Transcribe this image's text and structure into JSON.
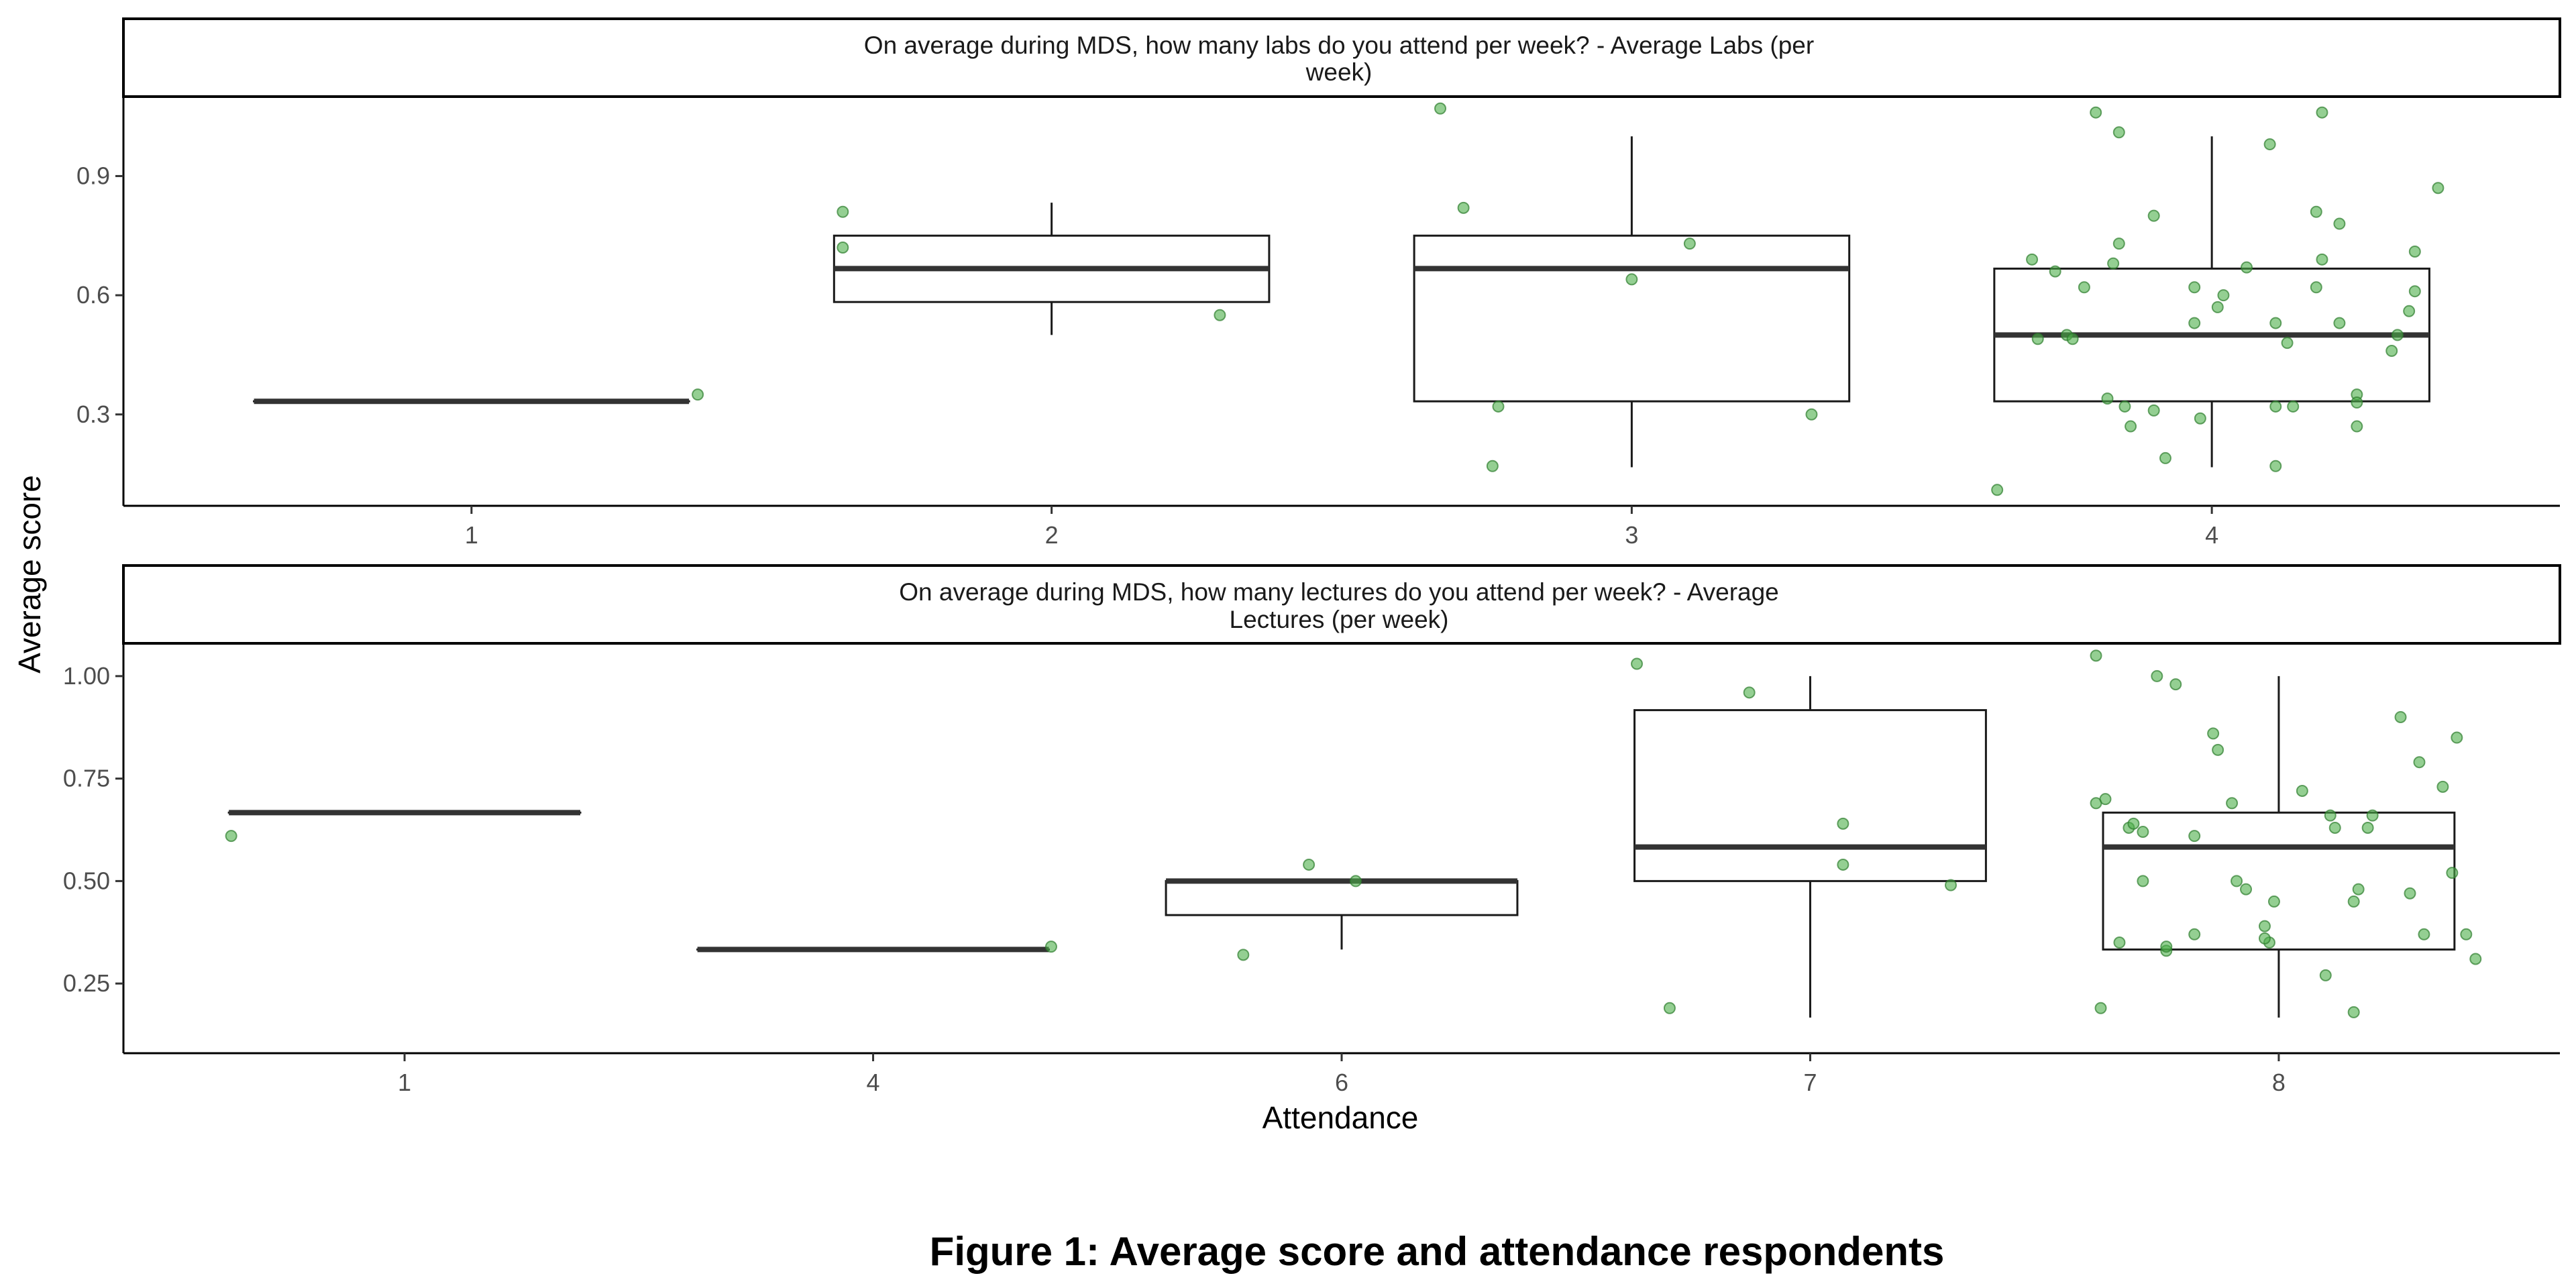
{
  "figure": {
    "caption": "Figure 1: Average score and attendance respondents",
    "ylabel": "Average score",
    "xlabel": "Attendance"
  },
  "colors": {
    "box_stroke": "#1a1a1a",
    "median": "#333333",
    "point_fill": "#4daf4a",
    "point_stroke": "#2e7d2e",
    "axis": "#000000",
    "tick_text": "#4d4d4d"
  },
  "chart_data": [
    {
      "type": "boxplot",
      "panel_title_lines": [
        "On average during MDS, how many labs do you attend per week? - Average Labs (per",
        "week)"
      ],
      "categories": [
        "1",
        "2",
        "3",
        "4"
      ],
      "ylim": [
        0.07,
        1.1
      ],
      "yticks": [
        0.3,
        0.6,
        0.9
      ],
      "ytick_labels": [
        "0.3",
        "0.6",
        "0.9"
      ],
      "boxes": [
        {
          "category": "1",
          "lower": 0.333,
          "q1": 0.333,
          "median": 0.333,
          "q3": 0.333,
          "upper": 0.333
        },
        {
          "category": "2",
          "lower": 0.5,
          "q1": 0.583,
          "median": 0.667,
          "q3": 0.75,
          "upper": 0.833
        },
        {
          "category": "3",
          "lower": 0.167,
          "q1": 0.333,
          "median": 0.667,
          "q3": 0.75,
          "upper": 1.0
        },
        {
          "category": "4",
          "lower": 0.167,
          "q1": 0.333,
          "median": 0.5,
          "q3": 0.667,
          "upper": 1.0
        }
      ],
      "points": [
        {
          "x": 1.39,
          "y": 0.35
        },
        {
          "x": 1.64,
          "y": 0.81
        },
        {
          "x": 1.64,
          "y": 0.72
        },
        {
          "x": 2.29,
          "y": 0.55
        },
        {
          "x": 2.67,
          "y": 1.07
        },
        {
          "x": 2.71,
          "y": 0.82
        },
        {
          "x": 2.77,
          "y": 0.32
        },
        {
          "x": 2.76,
          "y": 0.17
        },
        {
          "x": 3.0,
          "y": 0.64
        },
        {
          "x": 3.1,
          "y": 0.73
        },
        {
          "x": 3.31,
          "y": 0.3
        },
        {
          "x": 3.63,
          "y": 0.11
        },
        {
          "x": 3.69,
          "y": 0.69
        },
        {
          "x": 3.7,
          "y": 0.49
        },
        {
          "x": 3.73,
          "y": 0.66
        },
        {
          "x": 3.75,
          "y": 0.5
        },
        {
          "x": 3.76,
          "y": 0.49
        },
        {
          "x": 3.78,
          "y": 0.62
        },
        {
          "x": 3.8,
          "y": 1.06
        },
        {
          "x": 3.82,
          "y": 0.34
        },
        {
          "x": 3.83,
          "y": 0.68
        },
        {
          "x": 3.84,
          "y": 1.01
        },
        {
          "x": 3.84,
          "y": 0.73
        },
        {
          "x": 3.85,
          "y": 0.32
        },
        {
          "x": 3.86,
          "y": 0.27
        },
        {
          "x": 3.9,
          "y": 0.8
        },
        {
          "x": 3.92,
          "y": 0.19
        },
        {
          "x": 3.9,
          "y": 0.31
        },
        {
          "x": 3.98,
          "y": 0.29
        },
        {
          "x": 3.97,
          "y": 0.53
        },
        {
          "x": 3.97,
          "y": 0.62
        },
        {
          "x": 4.01,
          "y": 0.57
        },
        {
          "x": 4.02,
          "y": 0.6
        },
        {
          "x": 4.06,
          "y": 0.67
        },
        {
          "x": 4.1,
          "y": 0.98
        },
        {
          "x": 4.11,
          "y": 0.32
        },
        {
          "x": 4.11,
          "y": 0.53
        },
        {
          "x": 4.11,
          "y": 0.17
        },
        {
          "x": 4.13,
          "y": 0.48
        },
        {
          "x": 4.14,
          "y": 0.32
        },
        {
          "x": 4.18,
          "y": 0.62
        },
        {
          "x": 4.18,
          "y": 0.81
        },
        {
          "x": 4.19,
          "y": 1.06
        },
        {
          "x": 4.19,
          "y": 0.69
        },
        {
          "x": 4.22,
          "y": 0.53
        },
        {
          "x": 4.22,
          "y": 0.78
        },
        {
          "x": 4.25,
          "y": 0.27
        },
        {
          "x": 4.25,
          "y": 0.35
        },
        {
          "x": 4.25,
          "y": 0.33
        },
        {
          "x": 4.31,
          "y": 0.46
        },
        {
          "x": 4.32,
          "y": 0.5
        },
        {
          "x": 4.34,
          "y": 0.56
        },
        {
          "x": 4.35,
          "y": 0.71
        },
        {
          "x": 4.35,
          "y": 0.61
        },
        {
          "x": 4.39,
          "y": 0.87
        }
      ]
    },
    {
      "type": "boxplot",
      "panel_title_lines": [
        "On average during MDS, how many lectures do you attend per week? - Average",
        "Lectures (per week)"
      ],
      "categories": [
        "1",
        "4",
        "6",
        "7",
        "8"
      ],
      "ylim": [
        0.08,
        1.08
      ],
      "yticks": [
        0.25,
        0.5,
        0.75,
        1.0
      ],
      "ytick_labels": [
        "0.25",
        "0.50",
        "0.75",
        "1.00"
      ],
      "boxes": [
        {
          "category": "1",
          "lower": 0.667,
          "q1": 0.667,
          "median": 0.667,
          "q3": 0.667,
          "upper": 0.667
        },
        {
          "category": "4",
          "lower": 0.333,
          "q1": 0.333,
          "median": 0.333,
          "q3": 0.333,
          "upper": 0.333
        },
        {
          "category": "6",
          "lower": 0.333,
          "q1": 0.417,
          "median": 0.5,
          "q3": 0.5,
          "upper": 0.5
        },
        {
          "category": "7",
          "lower": 0.167,
          "q1": 0.5,
          "median": 0.583,
          "q3": 0.917,
          "upper": 1.0
        },
        {
          "category": "8",
          "lower": 0.167,
          "q1": 0.333,
          "median": 0.583,
          "q3": 0.667,
          "upper": 1.0
        }
      ],
      "points": [
        {
          "x": 0.63,
          "y": 0.61
        },
        {
          "x": 2.38,
          "y": 0.34
        },
        {
          "x": 2.79,
          "y": 0.32
        },
        {
          "x": 2.93,
          "y": 0.54
        },
        {
          "x": 3.03,
          "y": 0.5
        },
        {
          "x": 3.63,
          "y": 1.03
        },
        {
          "x": 3.7,
          "y": 0.19
        },
        {
          "x": 3.87,
          "y": 0.96
        },
        {
          "x": 4.07,
          "y": 0.64
        },
        {
          "x": 4.07,
          "y": 0.54
        },
        {
          "x": 4.3,
          "y": 0.49
        },
        {
          "x": 4.61,
          "y": 0.69
        },
        {
          "x": 4.63,
          "y": 0.7
        },
        {
          "x": 4.61,
          "y": 1.05
        },
        {
          "x": 4.62,
          "y": 0.19
        },
        {
          "x": 4.66,
          "y": 0.35
        },
        {
          "x": 4.68,
          "y": 0.63
        },
        {
          "x": 4.69,
          "y": 0.64
        },
        {
          "x": 4.71,
          "y": 0.5
        },
        {
          "x": 4.71,
          "y": 0.62
        },
        {
          "x": 4.74,
          "y": 1.0
        },
        {
          "x": 4.76,
          "y": 0.33
        },
        {
          "x": 4.76,
          "y": 0.34
        },
        {
          "x": 4.78,
          "y": 0.98
        },
        {
          "x": 4.82,
          "y": 0.37
        },
        {
          "x": 4.82,
          "y": 0.61
        },
        {
          "x": 4.86,
          "y": 0.86
        },
        {
          "x": 4.87,
          "y": 0.82
        },
        {
          "x": 4.9,
          "y": 0.69
        },
        {
          "x": 4.91,
          "y": 0.5
        },
        {
          "x": 4.93,
          "y": 0.48
        },
        {
          "x": 4.97,
          "y": 0.39
        },
        {
          "x": 4.98,
          "y": 0.35
        },
        {
          "x": 4.97,
          "y": 0.36
        },
        {
          "x": 4.99,
          "y": 0.45
        },
        {
          "x": 5.05,
          "y": 0.72
        },
        {
          "x": 5.1,
          "y": 0.27
        },
        {
          "x": 5.11,
          "y": 0.66
        },
        {
          "x": 5.12,
          "y": 0.63
        },
        {
          "x": 5.16,
          "y": 0.45
        },
        {
          "x": 5.16,
          "y": 0.18
        },
        {
          "x": 5.17,
          "y": 0.48
        },
        {
          "x": 5.19,
          "y": 0.63
        },
        {
          "x": 5.2,
          "y": 0.66
        },
        {
          "x": 5.26,
          "y": 0.9
        },
        {
          "x": 5.28,
          "y": 0.47
        },
        {
          "x": 5.3,
          "y": 0.79
        },
        {
          "x": 5.31,
          "y": 0.37
        },
        {
          "x": 5.35,
          "y": 0.73
        },
        {
          "x": 5.37,
          "y": 0.52
        },
        {
          "x": 5.38,
          "y": 0.85
        },
        {
          "x": 5.4,
          "y": 0.37
        },
        {
          "x": 5.42,
          "y": 0.31
        }
      ]
    }
  ]
}
